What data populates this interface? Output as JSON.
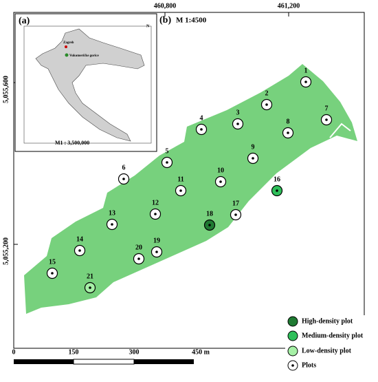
{
  "map": {
    "panel_a": "(a)",
    "panel_b": "(b)",
    "scale_text": "M 1:4500",
    "x_ticks": [
      "460,800",
      "461,200"
    ],
    "y_ticks": [
      "5,055,600",
      "5,055,200"
    ],
    "inset": {
      "cities": [
        "Zagreb",
        "Vukomeričke gorice"
      ],
      "scale": "M1 : 3,500,000"
    },
    "plots": [
      "1",
      "2",
      "3",
      "4",
      "5",
      "6",
      "7",
      "8",
      "9",
      "10",
      "11",
      "12",
      "13",
      "14",
      "15",
      "16",
      "17",
      "18",
      "19",
      "20",
      "21"
    ],
    "legend": [
      "High-density plot",
      "Medium-density plot",
      "Low-density plot",
      "Plots"
    ],
    "scalebar": [
      "0",
      "150",
      "300",
      "450 m"
    ]
  }
}
